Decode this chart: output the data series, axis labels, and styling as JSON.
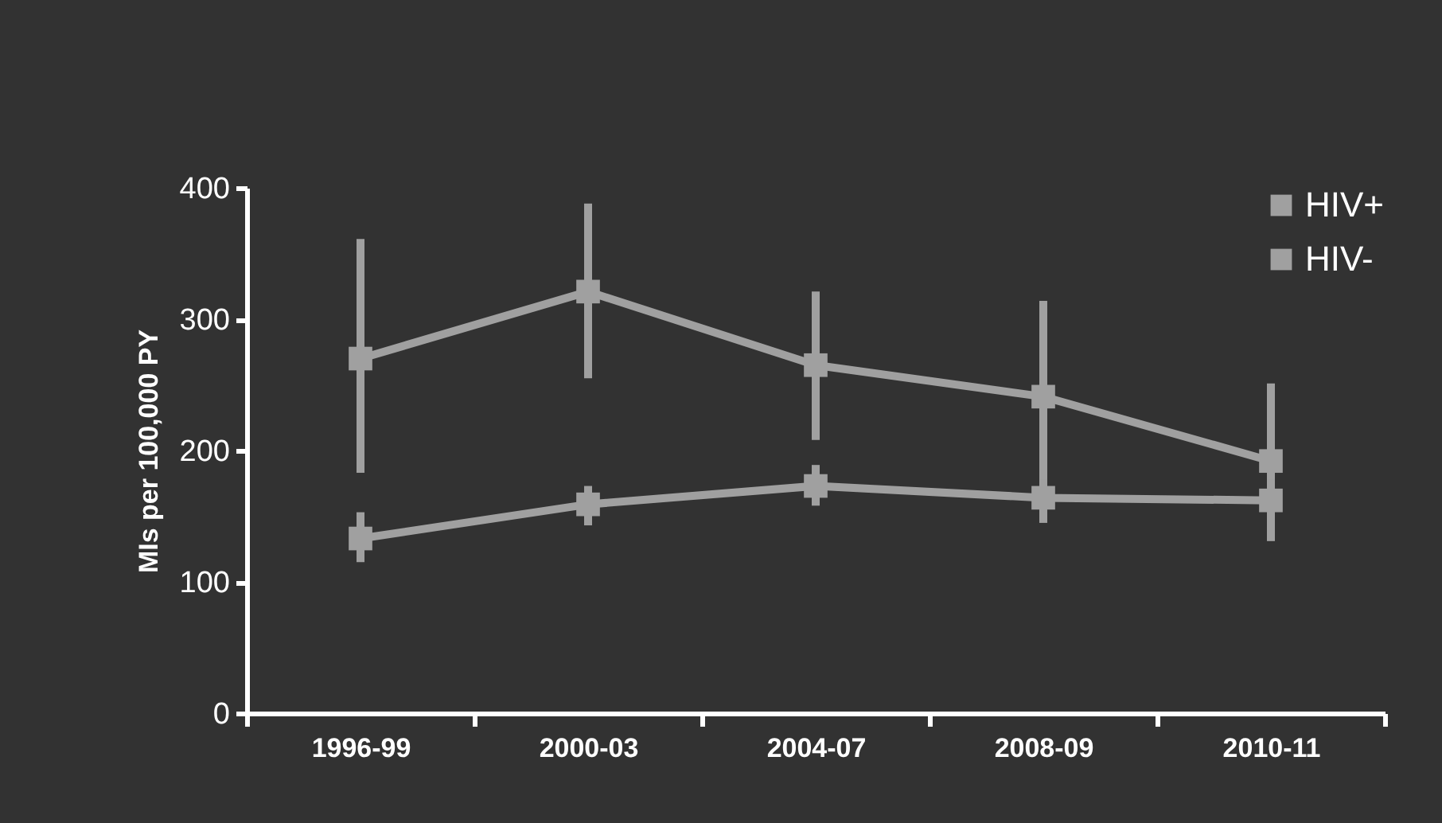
{
  "chart_data": {
    "type": "line",
    "ylabel": "MIs per 100,000 PY",
    "categories": [
      "1996-99",
      "2000-03",
      "2004-07",
      "2008-09",
      "2010-11"
    ],
    "series": [
      {
        "name": "HIV+",
        "color": "#a0a0a0",
        "values": [
          270,
          321,
          265,
          241,
          192
        ],
        "errors": [
          [
            183,
            361
          ],
          [
            255,
            388
          ],
          [
            208,
            321
          ],
          [
            145,
            314
          ],
          [
            150,
            251
          ]
        ]
      },
      {
        "name": "HIV-",
        "color": "#a0a0a0",
        "values": [
          133,
          159,
          173,
          164,
          162
        ],
        "errors": [
          [
            115,
            153
          ],
          [
            143,
            173
          ],
          [
            158,
            189
          ],
          [
            145,
            178
          ],
          [
            131,
            178
          ]
        ]
      }
    ],
    "ylim": [
      0,
      400
    ],
    "yticks": [
      0,
      100,
      200,
      300,
      400
    ],
    "grid": false,
    "legend": "top right",
    "marker": "square",
    "line_style": "solid"
  }
}
